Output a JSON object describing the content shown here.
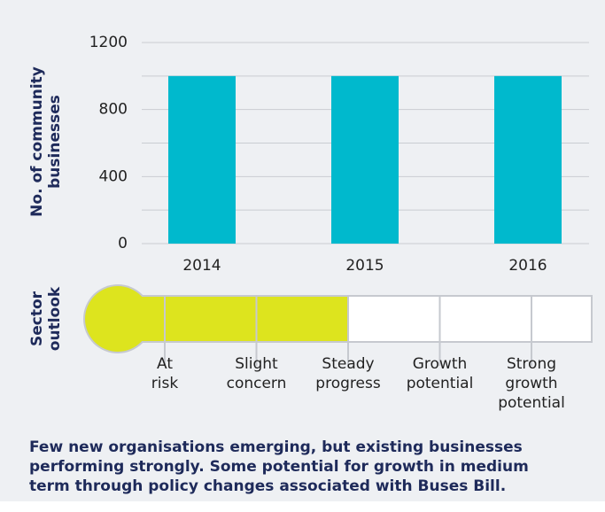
{
  "chart_data": {
    "type": "bar",
    "ylabel": "No. of community businesses",
    "categories": [
      "2014",
      "2015",
      "2016"
    ],
    "values": [
      1000,
      1000,
      1000
    ],
    "color": "#00b9cd",
    "ylim": [
      0,
      1200
    ],
    "yticks": [
      0,
      400,
      800,
      1200
    ],
    "ygrid": [
      0,
      200,
      400,
      600,
      800,
      1000,
      1200
    ],
    "grid": true
  },
  "outlook": {
    "label": "Sector outlook",
    "levels": [
      "At risk",
      "Slight concern",
      "Steady progress",
      "Growth potential",
      "Strong growth potential"
    ],
    "value": 3,
    "color": "#dde41e"
  },
  "caption": "Few new organisations emerging, but existing businesses performing strongly. Some potential for growth in medium term through policy changes associated with Buses Bill."
}
